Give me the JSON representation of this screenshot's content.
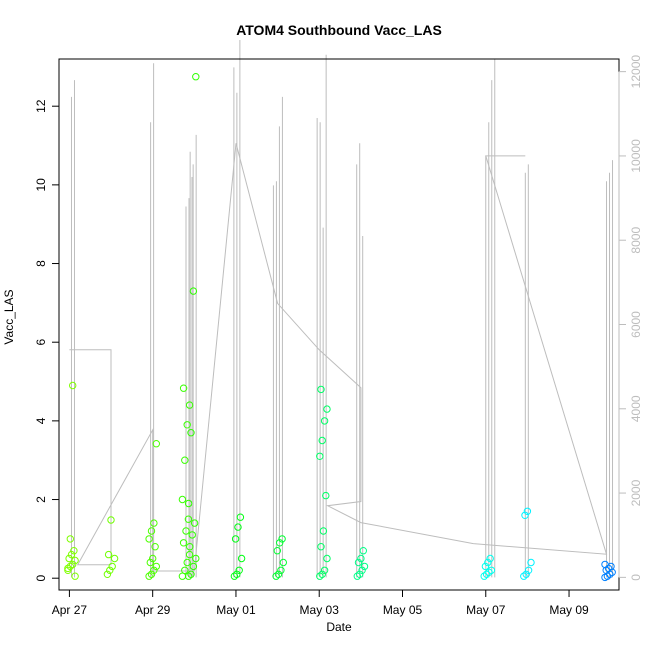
{
  "chart_data": {
    "type": "scatter",
    "title": "ATOM4 Southbound Vacc_LAS",
    "xlabel": "Date",
    "ylabel": "Vacc_LAS",
    "xlim": [
      -0.25,
      13.2
    ],
    "ylim": [
      -0.3,
      13.2
    ],
    "y2lim": [
      -300,
      12300
    ],
    "x_ticks": [
      {
        "value": 0,
        "label": "Apr 27"
      },
      {
        "value": 2,
        "label": "Apr 29"
      },
      {
        "value": 4,
        "label": "May 01"
      },
      {
        "value": 6,
        "label": "May 03"
      },
      {
        "value": 8,
        "label": "May 05"
      },
      {
        "value": 10,
        "label": "May 07"
      },
      {
        "value": 12,
        "label": "May 09"
      }
    ],
    "y_ticks": [
      0,
      2,
      4,
      6,
      8,
      10,
      12
    ],
    "y2_ticks": [
      0,
      2000,
      4000,
      6000,
      8000,
      10000,
      12000
    ],
    "y2_color": "#bdbdbd",
    "spikes": [
      {
        "x": 0.05,
        "values": [
          11400,
          11800
        ]
      },
      {
        "x": 1.95,
        "values": [
          10800,
          12200
        ]
      },
      {
        "x": 2.8,
        "values": [
          8800,
          9000,
          9500
        ]
      },
      {
        "x": 2.9,
        "values": [
          10100,
          9800,
          10500
        ]
      },
      {
        "x": 3.95,
        "values": [
          12100,
          11500,
          12750
        ]
      },
      {
        "x": 4.9,
        "values": [
          9300,
          9400,
          10700,
          11400
        ]
      },
      {
        "x": 5.95,
        "values": [
          10900,
          10800,
          8300,
          12400
        ]
      },
      {
        "x": 6.9,
        "values": [
          9800,
          10300,
          8100
        ]
      },
      {
        "x": 10.0,
        "values": [
          10000,
          10800,
          11800,
          12300
        ]
      },
      {
        "x": 10.95,
        "values": [
          9600,
          9800
        ]
      },
      {
        "x": 12.9,
        "values": [
          9400,
          9600,
          9900
        ]
      }
    ],
    "connector_path": [
      [
        0.0,
        5400
      ],
      [
        1.0,
        5400
      ],
      [
        1.0,
        300
      ],
      [
        0.2,
        300
      ],
      [
        2.0,
        3500
      ],
      [
        2.0,
        150
      ],
      [
        3.0,
        150
      ],
      [
        4.0,
        10300
      ],
      [
        5.0,
        6500
      ],
      [
        6.0,
        5400
      ],
      [
        7.0,
        4500
      ],
      [
        7.0,
        1800
      ],
      [
        6.2,
        1700
      ],
      [
        7.0,
        1300
      ],
      [
        9.7,
        800
      ],
      [
        12.9,
        550
      ],
      [
        10.0,
        10000
      ],
      [
        10.95,
        10000
      ]
    ],
    "series": [
      {
        "x": 0.05,
        "values": [
          0.2,
          0.3,
          0.35,
          0.45,
          0.5,
          0.6,
          0.7,
          0.25,
          1.0,
          4.9,
          0.05
        ],
        "color": "#7fff00"
      },
      {
        "x": 1.0,
        "values": [
          0.1,
          0.2,
          0.3,
          0.5,
          0.6,
          1.48
        ],
        "color": "#70ff00"
      },
      {
        "x": 2.0,
        "values": [
          0.05,
          0.1,
          0.2,
          0.3,
          0.4,
          0.5,
          0.8,
          1.0,
          1.2,
          1.4,
          3.42
        ],
        "color": "#4cff00"
      },
      {
        "x": 2.8,
        "values": [
          0.05,
          0.2,
          0.4,
          0.6,
          0.9,
          1.2,
          1.5,
          2.0,
          3.0,
          3.9,
          4.4,
          4.83
        ],
        "color": "#38ff00"
      },
      {
        "x": 2.95,
        "values": [
          0.05,
          0.1,
          0.3,
          0.5,
          0.8,
          1.1,
          1.4,
          1.9,
          3.7,
          7.3,
          12.75
        ],
        "color": "#2eff00"
      },
      {
        "x": 4.05,
        "values": [
          0.05,
          0.1,
          0.2,
          0.5,
          1.0,
          1.3,
          1.55
        ],
        "color": "#00ff14"
      },
      {
        "x": 5.05,
        "values": [
          0.05,
          0.1,
          0.2,
          0.4,
          0.7,
          0.9,
          1.0
        ],
        "color": "#00ff30"
      },
      {
        "x": 6.1,
        "values": [
          0.05,
          0.1,
          0.2,
          0.5,
          0.8,
          1.2,
          2.1,
          3.1,
          3.5,
          4.0,
          4.3,
          4.8
        ],
        "color": "#00ff66"
      },
      {
        "x": 7.0,
        "values": [
          0.05,
          0.1,
          0.2,
          0.3,
          0.4,
          0.5,
          0.7
        ],
        "color": "#00ff88"
      },
      {
        "x": 10.05,
        "values": [
          0.05,
          0.1,
          0.15,
          0.2,
          0.3,
          0.4,
          0.5
        ],
        "color": "#00ffee"
      },
      {
        "x": 11.0,
        "values": [
          0.05,
          0.1,
          0.2,
          0.4,
          1.6,
          1.7
        ],
        "color": "#00f2ff"
      },
      {
        "x": 12.95,
        "values": [
          0.02,
          0.05,
          0.1,
          0.15,
          0.2,
          0.25,
          0.3,
          0.35
        ],
        "color": "#0080ff"
      }
    ]
  }
}
